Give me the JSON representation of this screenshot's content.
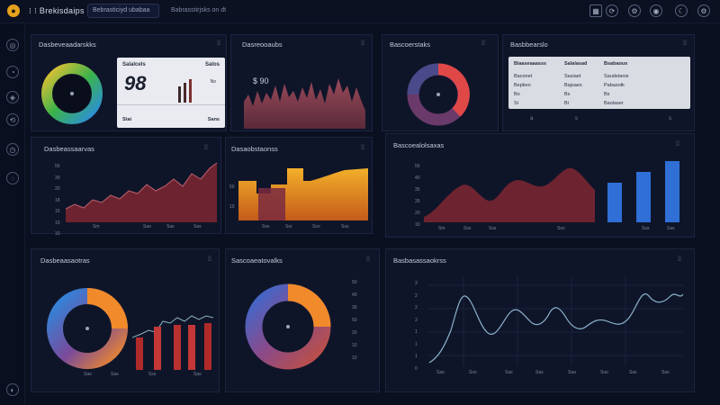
{
  "topbar": {
    "logo_glyph": "●",
    "app_title": "⁝ ⁝ Brekisdaips",
    "search": "Bebrasticiyd ubabaa",
    "crumb": "Babrasstirjsks on dt",
    "icons": [
      "grid-icon",
      "refresh-icon",
      "settings-icon",
      "user-icon",
      "moon-icon",
      "gear-icon"
    ],
    "icon_glyphs": [
      "▦",
      "⟳",
      "⚙",
      "◉",
      "☾",
      "⚙"
    ]
  },
  "sidebar": {
    "icons": [
      "home-icon",
      "chart-icon",
      "layers-icon",
      "refresh-icon",
      "clock-icon",
      "help-icon",
      "account-icon"
    ],
    "glyphs": [
      "◎",
      "◔",
      "◈",
      "⟲",
      "◷",
      "◌",
      "◐"
    ]
  },
  "panels": {
    "p1": {
      "title": "Dasbeveaadarskks",
      "menu": "⁞⁞",
      "card": {
        "head_left": "Salalcels",
        "head_right": "Salos",
        "value": "98",
        "side_label": "No",
        "foot_left": "Stai",
        "foot_right": "Sans"
      }
    },
    "p2": {
      "title": "Dasreooaubs",
      "menu": "⁞⁞",
      "value": "$ 90",
      "axis": "·"
    },
    "p3": {
      "title": "Bascoerstaks",
      "menu": "⁞⁞"
    },
    "p4": {
      "title": "Basbbearslo",
      "menu": "⁞⁞",
      "table": {
        "headers": [
          "Biaaseaaasss",
          "Salalasad",
          "Bsabaous"
        ],
        "rows": [
          [
            "Baconet",
            "Sasiaet",
            "Saudetanis"
          ],
          [
            "Bepkeo",
            "Bajsaes",
            "Pabasotk"
          ],
          [
            "Bo",
            "Bs",
            "Bs"
          ],
          [
            "Si",
            "Bi",
            "Baolaser"
          ]
        ]
      },
      "foot": [
        "a",
        "s",
        "s"
      ]
    },
    "p5": {
      "title": "Dasbeassaarvas",
      "menu": "⁞⁞",
      "ylabels": [
        "50",
        "30",
        "20",
        "18",
        "15",
        "10",
        "10"
      ],
      "xlabels": [
        "Sm",
        "Sao",
        "Sas",
        "Sas"
      ]
    },
    "p6": {
      "title": "Dasaobstaonss",
      "menu": "⁞⁞",
      "ylabels": [
        "50",
        "10"
      ],
      "xlabels": [
        "Sss",
        "Ssr",
        "Sso",
        "Sus"
      ]
    },
    "p7": {
      "title": "Bascoealolsaxas",
      "menu": "⁞⁞",
      "ylabels": [
        "50",
        "40",
        "35",
        "35",
        "20",
        "10"
      ],
      "xlabels": [
        "Sm",
        "Sss",
        "Sss",
        "Sso",
        "Sss",
        "Sas"
      ]
    },
    "p8": {
      "title": "Dasbeaasaotras",
      "menu": "⁞⁞",
      "xlabels": [
        "Sao",
        "Sas",
        "Sss",
        "Sas"
      ]
    },
    "p9": {
      "title": "Sascoaeatovalks",
      "menu": "⁞⁞",
      "ylabels": [
        "50",
        "40",
        "30",
        "50",
        "20",
        "10",
        "10"
      ],
      "xlabels": [
        "Sas",
        "Sas",
        "Sss",
        "Sas"
      ]
    },
    "p10": {
      "title": "Basbasassaokrss",
      "menu": "⁞⁞",
      "ylabels": [
        "3",
        "2",
        "2",
        "3",
        "1",
        "1",
        "1",
        "0"
      ],
      "xlabels": [
        "Sao",
        "Sos",
        "Sas",
        "Sas",
        "Saa",
        "Suo",
        "Sas",
        "Sas"
      ]
    }
  },
  "colors": {
    "bg": "#0b1020",
    "panel": "#0f1529",
    "accent_gold": "#e6a21c",
    "maroon": "#7a2a35",
    "blue": "#2f6fd6",
    "orange": "#f08a2a",
    "red": "#c43838"
  }
}
